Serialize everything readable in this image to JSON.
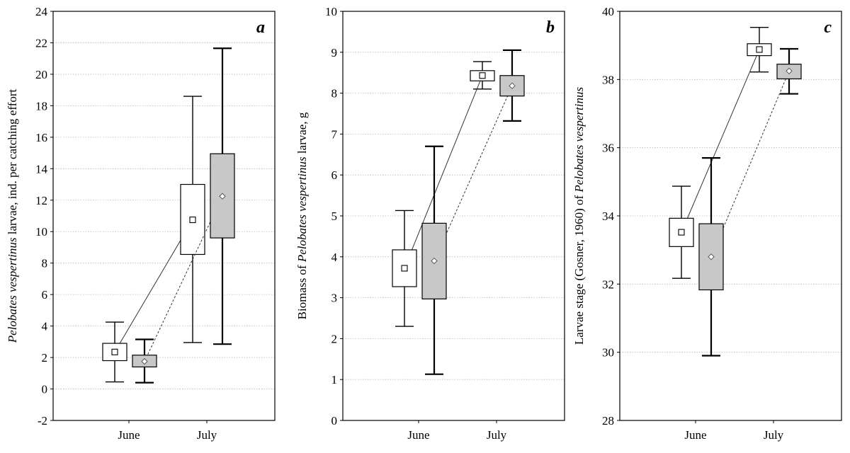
{
  "chart_data": [
    {
      "type": "box",
      "panel_letter": "a",
      "ylabel_parts": [
        {
          "text": "Pelobates vespertinus",
          "italic": true
        },
        {
          "text": " larvae, ind. per catching effort",
          "italic": false
        }
      ],
      "ylim": [
        -2,
        24
      ],
      "yticks": [
        -2,
        0,
        2,
        4,
        6,
        8,
        10,
        12,
        14,
        16,
        18,
        20,
        22,
        24
      ],
      "categories": [
        "June",
        "July"
      ],
      "grid": "horizontal dotted",
      "series": [
        {
          "style": "white",
          "boxes": [
            {
              "category": "June",
              "mean": 2.35,
              "q1": 1.8,
              "q3": 2.9,
              "min": 0.45,
              "max": 4.25
            },
            {
              "category": "July",
              "mean": 10.75,
              "q1": 8.55,
              "q3": 13.0,
              "min": 2.95,
              "max": 18.6
            }
          ]
        },
        {
          "style": "gray",
          "boxes": [
            {
              "category": "June",
              "mean": 1.75,
              "q1": 1.4,
              "q3": 2.15,
              "min": 0.4,
              "max": 3.15
            },
            {
              "category": "July",
              "mean": 12.25,
              "q1": 9.6,
              "q3": 14.95,
              "min": 2.85,
              "max": 21.65
            }
          ]
        }
      ]
    },
    {
      "type": "box",
      "panel_letter": "b",
      "ylabel_parts": [
        {
          "text": "Biomass of ",
          "italic": false
        },
        {
          "text": "Pelobates vespertinus",
          "italic": true
        },
        {
          "text": " larvae, g",
          "italic": false
        }
      ],
      "ylim": [
        0,
        10
      ],
      "yticks": [
        0,
        1,
        2,
        3,
        4,
        5,
        6,
        7,
        8,
        9,
        10
      ],
      "categories": [
        "June",
        "July"
      ],
      "grid": "horizontal dotted",
      "series": [
        {
          "style": "white",
          "boxes": [
            {
              "category": "June",
              "mean": 3.72,
              "q1": 3.27,
              "q3": 4.17,
              "min": 2.3,
              "max": 5.13
            },
            {
              "category": "July",
              "mean": 8.43,
              "q1": 8.3,
              "q3": 8.55,
              "min": 8.1,
              "max": 8.77
            }
          ]
        },
        {
          "style": "gray",
          "boxes": [
            {
              "category": "June",
              "mean": 3.9,
              "q1": 2.97,
              "q3": 4.82,
              "min": 1.13,
              "max": 6.7
            },
            {
              "category": "July",
              "mean": 8.18,
              "q1": 7.93,
              "q3": 8.43,
              "min": 7.32,
              "max": 9.05
            }
          ]
        }
      ]
    },
    {
      "type": "box",
      "panel_letter": "c",
      "ylabel_parts": [
        {
          "text": "Larvae stage (Gosner, 1960) of ",
          "italic": false
        },
        {
          "text": "Pelobates vespertinus",
          "italic": true
        }
      ],
      "ylim": [
        28,
        40
      ],
      "yticks": [
        28,
        30,
        32,
        34,
        36,
        38,
        40
      ],
      "categories": [
        "June",
        "July"
      ],
      "grid": "horizontal dotted",
      "series": [
        {
          "style": "white",
          "boxes": [
            {
              "category": "June",
              "mean": 33.52,
              "q1": 33.1,
              "q3": 33.93,
              "min": 32.17,
              "max": 34.87
            },
            {
              "category": "July",
              "mean": 38.88,
              "q1": 38.7,
              "q3": 39.05,
              "min": 38.22,
              "max": 39.53
            }
          ]
        },
        {
          "style": "gray",
          "boxes": [
            {
              "category": "June",
              "mean": 32.8,
              "q1": 31.83,
              "q3": 33.77,
              "min": 29.9,
              "max": 35.7
            },
            {
              "category": "July",
              "mean": 38.25,
              "q1": 38.02,
              "q3": 38.45,
              "min": 37.58,
              "max": 38.9
            }
          ]
        }
      ]
    }
  ]
}
